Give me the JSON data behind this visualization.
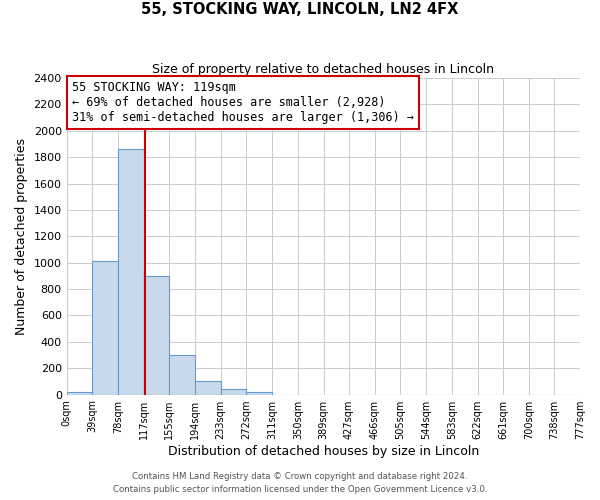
{
  "title": "55, STOCKING WAY, LINCOLN, LN2 4FX",
  "subtitle": "Size of property relative to detached houses in Lincoln",
  "xlabel": "Distribution of detached houses by size in Lincoln",
  "ylabel": "Number of detached properties",
  "bin_edges": [
    0,
    39,
    78,
    117,
    155,
    194,
    233,
    272,
    311,
    350,
    389,
    427,
    466,
    505,
    544,
    583,
    622,
    661,
    700,
    738,
    777
  ],
  "bar_heights": [
    20,
    1010,
    1860,
    900,
    300,
    100,
    45,
    20,
    0,
    0,
    0,
    0,
    0,
    0,
    0,
    0,
    0,
    0,
    0,
    0
  ],
  "bar_color": "#c9d9ec",
  "bar_edge_color": "#6699cc",
  "property_line_x": 119,
  "property_line_color": "#cc0000",
  "annotation_line1": "55 STOCKING WAY: 119sqm",
  "annotation_line2": "← 69% of detached houses are smaller (2,928)",
  "annotation_line3": "31% of semi-detached houses are larger (1,306) →",
  "annotation_box_color": "white",
  "annotation_box_edge_color": "#cc0000",
  "ylim": [
    0,
    2400
  ],
  "yticks": [
    0,
    200,
    400,
    600,
    800,
    1000,
    1200,
    1400,
    1600,
    1800,
    2000,
    2200,
    2400
  ],
  "tick_labels": [
    "0sqm",
    "39sqm",
    "78sqm",
    "117sqm",
    "155sqm",
    "194sqm",
    "233sqm",
    "272sqm",
    "311sqm",
    "350sqm",
    "389sqm",
    "427sqm",
    "466sqm",
    "505sqm",
    "544sqm",
    "583sqm",
    "622sqm",
    "661sqm",
    "700sqm",
    "738sqm",
    "777sqm"
  ],
  "footer_line1": "Contains HM Land Registry data © Crown copyright and database right 2024.",
  "footer_line2": "Contains public sector information licensed under the Open Government Licence v3.0.",
  "background_color": "#ffffff",
  "grid_color": "#cccccc",
  "xlim_max": 777
}
